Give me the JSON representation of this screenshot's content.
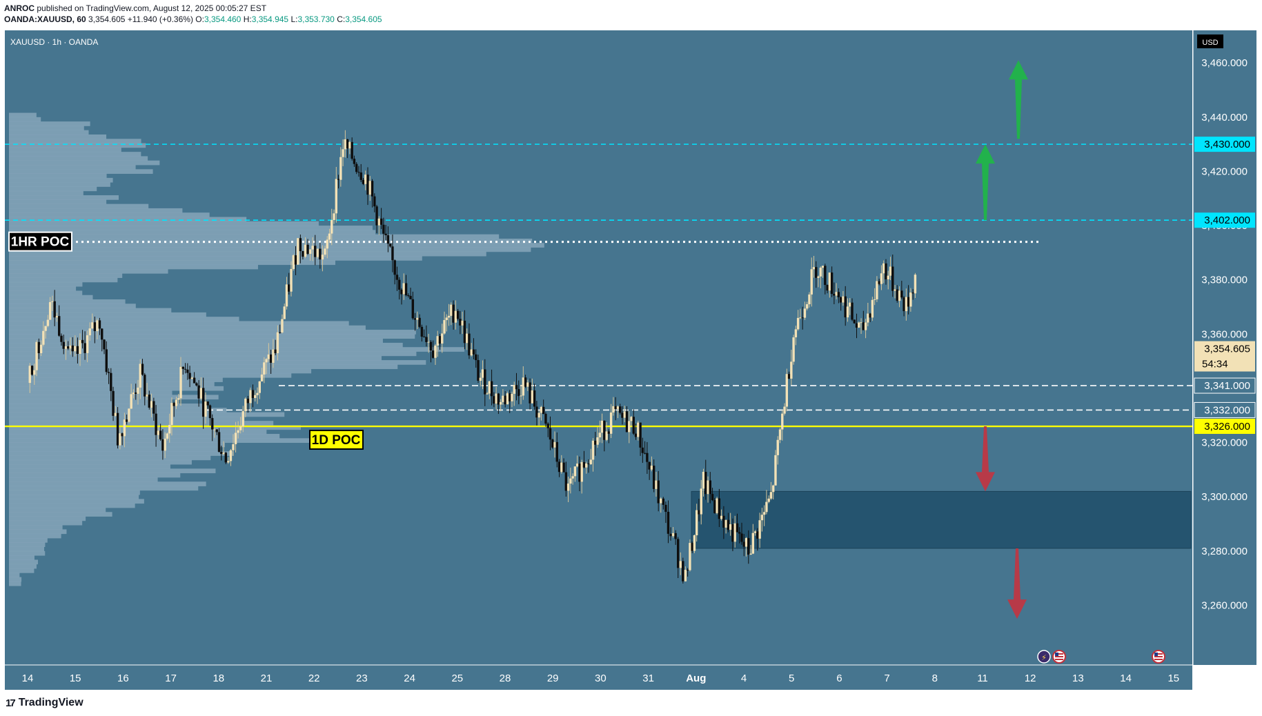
{
  "header": {
    "publisher": "ANROC",
    "published_text": "published on TradingView.com, August 12, 2025 00:05:27 EST",
    "symbol_line": "OANDA:XAUUSD, 60",
    "last": "3,354.605",
    "change": "+11.940 (+0.36%)",
    "o_label": "O:",
    "o": "3,354.460",
    "h_label": "H:",
    "h": "3,354.945",
    "l_label": "L:",
    "l": "3,353.730",
    "c_label": "C:",
    "c": "3,354.605"
  },
  "footer": {
    "brand": "TradingView",
    "logo_mark": "17"
  },
  "colors": {
    "background": "#46758F",
    "bull_candle": "#F2E1B6",
    "bear_candle": "#0E0E0E",
    "volume_profile": "#86A6BA",
    "cyan_level": "#00E5FF",
    "yellow_level": "#FFFF00",
    "white_level": "#FFFFFF",
    "zone": "#25546F",
    "green_arrow": "#22B24C",
    "red_arrow": "#B73A48"
  },
  "chart_data": {
    "type": "candlestick",
    "title": "XAUUSD · 1h · OANDA",
    "currency": "USD",
    "y_axis": {
      "ticks": [
        "3,260.000",
        "3,280.000",
        "3,300.000",
        "3,320.000",
        "3,340.000",
        "3,360.000",
        "3,380.000",
        "3,400.000",
        "3,420.000",
        "3,440.000",
        "3,460.000"
      ],
      "tick_values": [
        3260,
        3280,
        3300,
        3320,
        3340,
        3360,
        3380,
        3400,
        3420,
        3440,
        3460
      ],
      "ylim": [
        3238,
        3472
      ]
    },
    "x_axis": {
      "tick_labels": [
        "14",
        "15",
        "16",
        "17",
        "18",
        "21",
        "22",
        "23",
        "24",
        "25",
        "28",
        "29",
        "30",
        "31",
        "Aug",
        "4",
        "5",
        "6",
        "7",
        "8",
        "11",
        "12",
        "13",
        "14",
        "15"
      ]
    },
    "close_path": {
      "session_index": [
        0,
        0.5,
        1,
        1.6,
        2,
        2.5,
        3,
        3.5,
        4,
        4.4,
        5,
        5.5,
        6,
        6.6,
        7,
        7.5,
        8,
        8.5,
        9,
        9.5,
        10,
        10.5,
        11,
        11.5,
        12,
        12.5,
        13,
        13.5,
        14,
        14.6,
        15,
        15.5,
        16,
        16.5,
        17,
        17.5,
        18,
        18.5,
        19,
        19.5,
        20,
        20.5,
        21,
        21.3
      ],
      "price": [
        3342,
        3372,
        3350,
        3365,
        3322,
        3345,
        3318,
        3350,
        3330,
        3314,
        3340,
        3354,
        3394,
        3388,
        3430,
        3418,
        3390,
        3370,
        3355,
        3370,
        3345,
        3335,
        3342,
        3326,
        3302,
        3318,
        3330,
        3326,
        3300,
        3270,
        3305,
        3290,
        3280,
        3300,
        3360,
        3385,
        3375,
        3360,
        3385,
        3370,
        3398,
        3390,
        3360,
        3354.6
      ]
    },
    "price_labels": [
      {
        "price": 3430,
        "text": "3,430.000",
        "style": "cyan"
      },
      {
        "price": 3402,
        "text": "3,402.000",
        "style": "cyan"
      },
      {
        "price": 3354.605,
        "text": "3,354.605",
        "countdown": "54:34",
        "style": "last"
      },
      {
        "price": 3341,
        "text": "3,341.000",
        "style": "white"
      },
      {
        "price": 3332,
        "text": "3,332.000",
        "style": "white"
      },
      {
        "price": 3326,
        "text": "3,326.000",
        "style": "yellow"
      }
    ],
    "levels": [
      {
        "price": 3430,
        "style": "cyan-dashed"
      },
      {
        "price": 3402,
        "style": "cyan-dashed"
      },
      {
        "price": 3394,
        "style": "white-dotted",
        "label": "1HR POC"
      },
      {
        "price": 3341,
        "style": "white-dashed"
      },
      {
        "price": 3332,
        "style": "white-dashed"
      },
      {
        "price": 3326,
        "style": "yellow-solid",
        "label": "1D POC"
      }
    ],
    "zone": {
      "top": 3302,
      "bottom": 3281
    },
    "arrows": [
      {
        "direction": "up",
        "from": 3402,
        "to": 3430,
        "color": "green"
      },
      {
        "direction": "up",
        "from": 3432,
        "to": 3461,
        "color": "green"
      },
      {
        "direction": "down",
        "from": 3326,
        "to": 3302,
        "color": "red"
      },
      {
        "direction": "down",
        "from": 3281,
        "to": 3255,
        "color": "red"
      }
    ]
  }
}
